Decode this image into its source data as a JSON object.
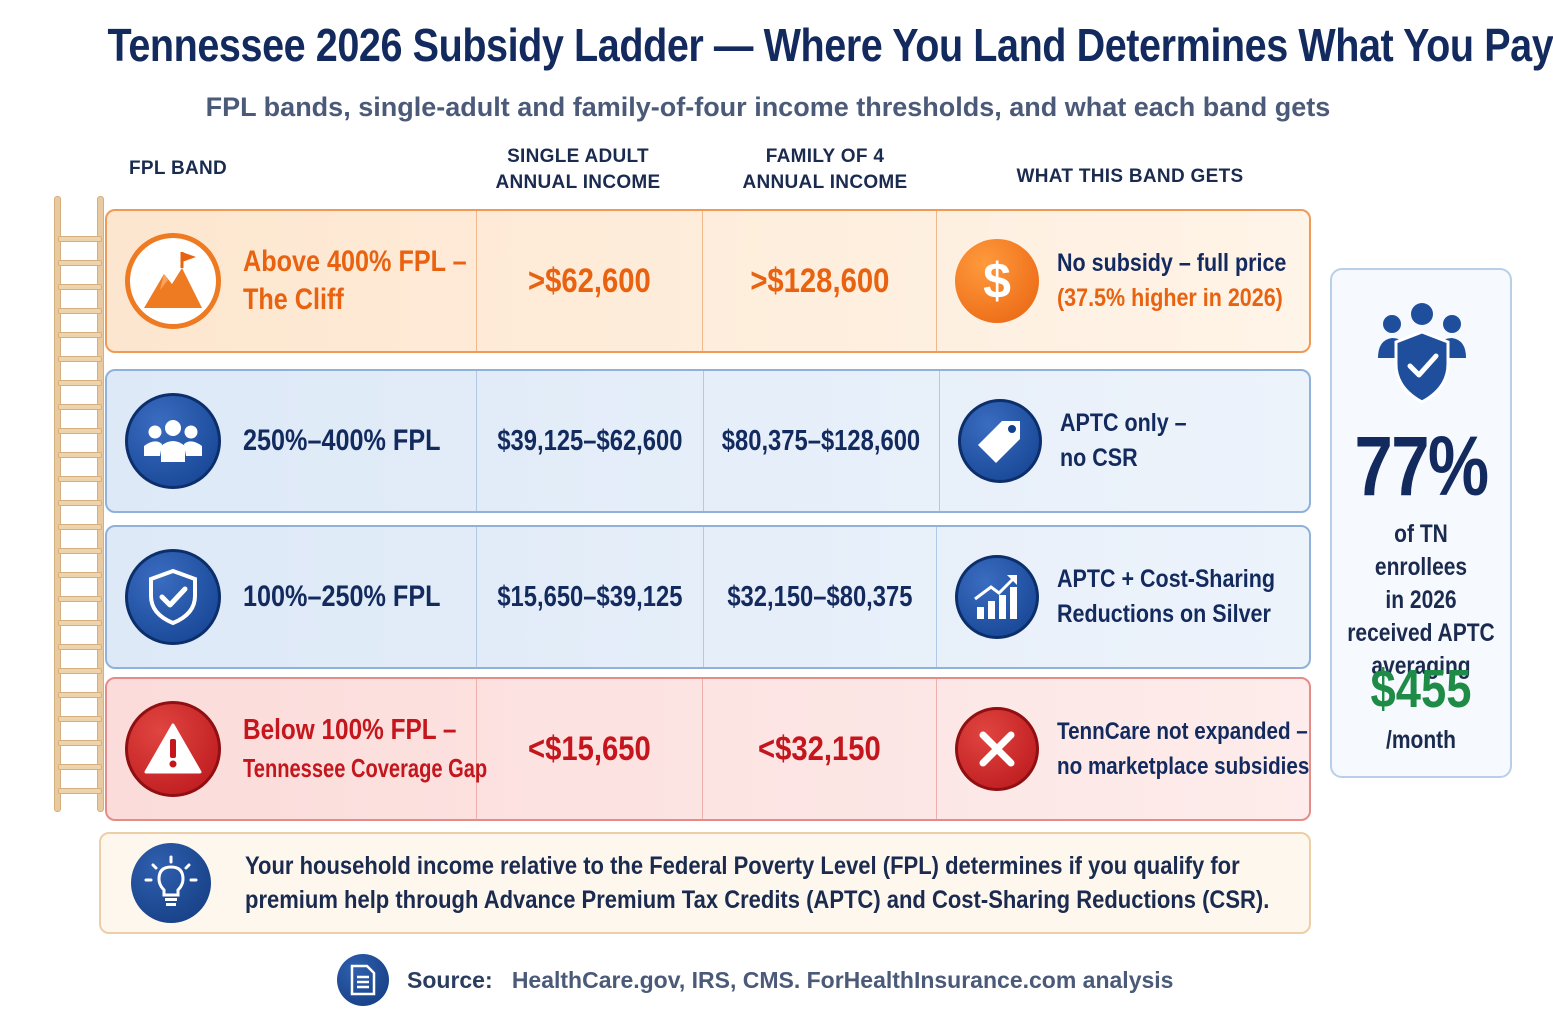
{
  "header": {
    "title": "Tennessee 2026 Subsidy Ladder — Where You Land Determines What You Pay",
    "subtitle": "FPL bands, single-adult and family-of-four income thresholds, and what each band gets"
  },
  "columns": {
    "band": "FPL BAND",
    "single_1": "SINGLE ADULT",
    "single_2": "ANNUAL INCOME",
    "family_1": "FAMILY OF 4",
    "family_2": "ANNUAL INCOME",
    "gets": "WHAT THIS BAND GETS"
  },
  "bands": [
    {
      "label_1": "Above 400% FPL –",
      "label_2": "The Cliff",
      "single": ">$62,600",
      "family": ">$128,600",
      "gets_1": "No subsidy – full price",
      "gets_2": "(37.5% higher in 2026)",
      "icon": "mountain-flag-icon",
      "gets_icon": "dollar-icon",
      "color": "#e8620f"
    },
    {
      "label_1": "250%–400% FPL",
      "single": "$39,125–$62,600",
      "family": "$80,375–$128,600",
      "gets_1": "APTC only –",
      "gets_2": "no CSR",
      "icon": "people-group-icon",
      "gets_icon": "price-tag-icon",
      "color": "#132a5e"
    },
    {
      "label_1": "100%–250% FPL",
      "single": "$15,650–$39,125",
      "family": "$32,150–$80,375",
      "gets_1": "APTC + Cost-Sharing",
      "gets_2": "Reductions on Silver",
      "icon": "shield-check-icon",
      "gets_icon": "bar-chart-up-icon",
      "color": "#132a5e"
    },
    {
      "label_1": "Below 100% FPL –",
      "label_2": "Tennessee Coverage Gap",
      "single": "<$15,650",
      "family": "<$32,150",
      "gets_1": "TennCare not expanded –",
      "gets_2": "no marketplace subsidies",
      "icon": "warning-icon",
      "gets_icon": "x-circle-icon",
      "color": "#c4161c"
    }
  ],
  "stat": {
    "percent": "77%",
    "text_1": "of TN enrollees",
    "text_2": "in 2026",
    "text_3": "received APTC",
    "text_4": "averaging",
    "amount": "$455",
    "unit": "/month",
    "icon": "people-shield-icon",
    "amount_color": "#1e8b46"
  },
  "note": {
    "line_1": "Your household income  relative to the Federal Poverty Level (FPL) determines if you qualify for",
    "line_2": "premium help through Advance Premium Tax Credits (APTC) and Cost-Sharing Reductions (CSR).",
    "icon": "lightbulb-icon"
  },
  "source": {
    "label": "Source:",
    "text": "HealthCare.gov, IRS, CMS. ForHealthInsurance.com analysis",
    "icon": "document-icon"
  }
}
